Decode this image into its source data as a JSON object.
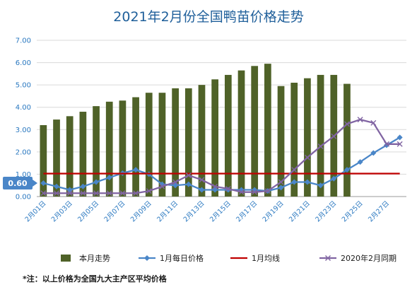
{
  "chart_data": {
    "type": "bar",
    "title": "2021年2月份全国鸭苗价格走势",
    "xlabel": "",
    "ylabel": "",
    "ylim": [
      0,
      7
    ],
    "yticks": [
      "0.00",
      "1.00",
      "2.00",
      "3.00",
      "4.00",
      "5.00",
      "6.00",
      "7.00"
    ],
    "grid": true,
    "legend_position": "bottom",
    "categories": [
      "2月01日",
      "2月02日",
      "2月03日",
      "2月04日",
      "2月05日",
      "2月06日",
      "2月07日",
      "2月08日",
      "2月09日",
      "2月10日",
      "2月11日",
      "2月12日",
      "2月13日",
      "2月14日",
      "2月15日",
      "2月16日",
      "2月17日",
      "2月18日",
      "2月19日",
      "2月20日",
      "2月21日",
      "2月22日",
      "2月23日",
      "2月24日",
      "2月25日",
      "2月26日",
      "2月27日",
      "2月28日"
    ],
    "xtick_labels": [
      "2月01日",
      "",
      "2月03日",
      "",
      "2月05日",
      "",
      "2月07日",
      "",
      "2月09日",
      "",
      "2月11日",
      "",
      "2月13日",
      "",
      "2月15日",
      "",
      "2月17日",
      "",
      "2月19日",
      "",
      "2月21日",
      "",
      "2月23日",
      "",
      "2月25日",
      "",
      "2月27日",
      ""
    ],
    "series": [
      {
        "name": "本月走势",
        "kind": "bar",
        "color": "#4f6228",
        "values": [
          3.2,
          3.45,
          3.6,
          3.8,
          4.05,
          4.25,
          4.3,
          4.45,
          4.65,
          4.65,
          4.85,
          4.85,
          5.0,
          5.25,
          5.45,
          5.65,
          5.85,
          5.95,
          4.95,
          5.1,
          5.3,
          5.45,
          5.45,
          5.05,
          null,
          null,
          null,
          null
        ]
      },
      {
        "name": "1月每日价格",
        "kind": "line",
        "marker": "diamond",
        "color": "#4a86c8",
        "values": [
          0.6,
          0.45,
          0.3,
          0.45,
          0.65,
          0.85,
          1.05,
          1.2,
          1.0,
          0.55,
          0.5,
          0.55,
          0.3,
          0.3,
          0.3,
          0.3,
          0.3,
          0.25,
          0.4,
          0.65,
          0.65,
          0.5,
          0.8,
          1.2,
          1.55,
          1.95,
          2.3,
          2.65
        ]
      },
      {
        "name": "1月均线",
        "kind": "line",
        "color": "#c00000",
        "values": [
          1.03,
          1.03,
          1.03,
          1.03,
          1.03,
          1.03,
          1.03,
          1.03,
          1.03,
          1.03,
          1.03,
          1.03,
          1.03,
          1.03,
          1.03,
          1.03,
          1.03,
          1.03,
          1.03,
          1.03,
          1.03,
          1.03,
          1.03,
          1.03,
          1.03,
          1.03,
          1.03,
          1.03
        ]
      },
      {
        "name": "2020年2月同期",
        "kind": "line",
        "marker": "x",
        "color": "#8064a2",
        "values": [
          0.15,
          0.15,
          0.15,
          0.15,
          0.15,
          0.15,
          0.15,
          0.15,
          0.25,
          0.45,
          0.65,
          0.95,
          0.75,
          0.45,
          0.35,
          0.2,
          0.2,
          0.25,
          0.65,
          1.2,
          1.75,
          2.25,
          2.7,
          3.25,
          3.45,
          3.3,
          2.35,
          2.35
        ]
      }
    ],
    "callout": {
      "label": "0.60",
      "value": 0.6,
      "series": "1月每日价格"
    },
    "note": "*注：以上价格为全国九大主产区平均价格"
  }
}
